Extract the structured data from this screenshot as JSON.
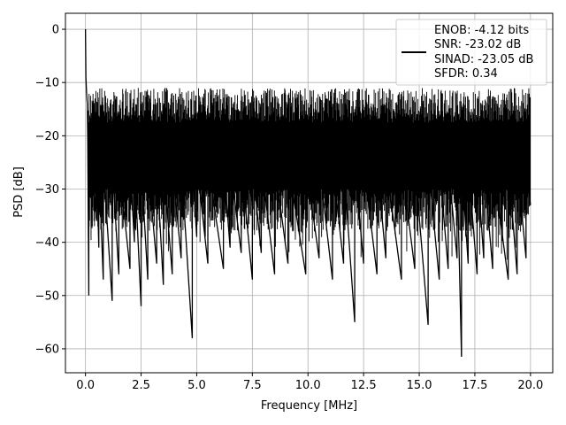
{
  "chart_data": {
    "type": "line",
    "title": "",
    "xlabel": "Frequency [MHz]",
    "ylabel": "PSD [dB]",
    "xlim": [
      -0.9,
      21.0
    ],
    "ylim": [
      -64.5,
      3.0
    ],
    "xticks": [
      0.0,
      2.5,
      5.0,
      7.5,
      10.0,
      12.5,
      15.0,
      17.5,
      20.0
    ],
    "xtick_labels": [
      "0.0",
      "2.5",
      "5.0",
      "7.5",
      "10.0",
      "12.5",
      "15.0",
      "17.5",
      "20.0"
    ],
    "yticks": [
      0,
      -10,
      -20,
      -30,
      -40,
      -50,
      -60
    ],
    "ytick_labels": [
      "0",
      "−10",
      "−20",
      "−30",
      "−40",
      "−50",
      "−60"
    ],
    "grid": true,
    "legend_position": "top-right",
    "line_color": "#000000",
    "series": [
      {
        "legend_lines": [
          "ENOB: -4.12 bits",
          "SNR: -23.02 dB",
          "SINAD: -23.05 dB",
          "SFDR: 0.34"
        ],
        "x": [
          0.0,
          0.02,
          0.05,
          0.08,
          0.1,
          0.15,
          0.2,
          0.3,
          0.5,
          0.6,
          0.8,
          1.2,
          1.5,
          2.0,
          2.2,
          2.5,
          2.8,
          3.2,
          3.5,
          3.9,
          4.3,
          4.8,
          5.0,
          5.5,
          6.2,
          6.5,
          7.0,
          7.5,
          7.9,
          8.5,
          9.1,
          9.9,
          10.5,
          11.1,
          11.6,
          12.1,
          12.5,
          13.1,
          13.5,
          14.2,
          14.8,
          15.4,
          15.9,
          16.3,
          16.7,
          16.9,
          17.2,
          17.6,
          17.9,
          18.3,
          19.0,
          19.4,
          19.8,
          20.0
        ],
        "y": [
          0.0,
          -9.0,
          -12.0,
          -14.0,
          -20.0,
          -50.0,
          -30.0,
          -37.0,
          -36.0,
          -41.0,
          -47.0,
          -51.0,
          -46.0,
          -45.0,
          -40.0,
          -52.0,
          -47.0,
          -44.0,
          -48.0,
          -46.0,
          -43.0,
          -58.0,
          -39.0,
          -44.0,
          -45.0,
          -41.0,
          -42.0,
          -47.0,
          -42.0,
          -46.0,
          -44.0,
          -46.0,
          -43.0,
          -47.0,
          -44.0,
          -55.0,
          -44.0,
          -46.0,
          -43.0,
          -47.0,
          -45.0,
          -55.5,
          -47.0,
          -45.0,
          -43.0,
          -61.5,
          -44.0,
          -46.0,
          -43.0,
          -45.0,
          -47.0,
          -46.0,
          -43.0,
          -33.0
        ]
      }
    ]
  }
}
